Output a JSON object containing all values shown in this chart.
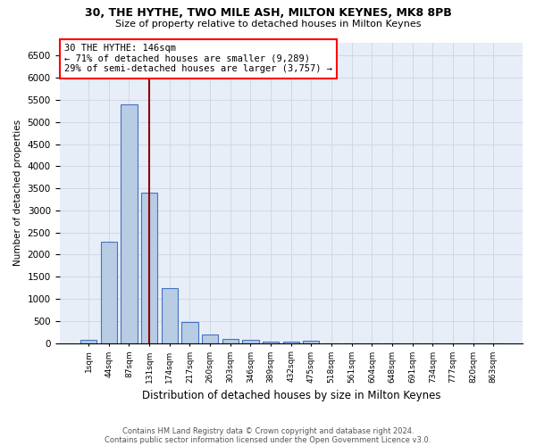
{
  "title1": "30, THE HYTHE, TWO MILE ASH, MILTON KEYNES, MK8 8PB",
  "title2": "Size of property relative to detached houses in Milton Keynes",
  "xlabel": "Distribution of detached houses by size in Milton Keynes",
  "ylabel": "Number of detached properties",
  "footnote1": "Contains HM Land Registry data © Crown copyright and database right 2024.",
  "footnote2": "Contains public sector information licensed under the Open Government Licence v3.0.",
  "bin_labels": [
    "1sqm",
    "44sqm",
    "87sqm",
    "131sqm",
    "174sqm",
    "217sqm",
    "260sqm",
    "303sqm",
    "346sqm",
    "389sqm",
    "432sqm",
    "475sqm",
    "518sqm",
    "561sqm",
    "604sqm",
    "648sqm",
    "691sqm",
    "734sqm",
    "777sqm",
    "820sqm",
    "863sqm"
  ],
  "bar_values": [
    75,
    2300,
    5400,
    3400,
    1250,
    475,
    190,
    100,
    75,
    40,
    30,
    55,
    0,
    0,
    0,
    0,
    0,
    0,
    0,
    0,
    0
  ],
  "bar_color": "#b8cce4",
  "bar_edgecolor": "#4472c4",
  "bar_linewidth": 0.8,
  "grid_color": "#d0d8e8",
  "background_color": "#e8eef8",
  "vline_x_index": 3,
  "vline_color": "#8b0000",
  "annotation_text": "30 THE HYTHE: 146sqm\n← 71% of detached houses are smaller (9,289)\n29% of semi-detached houses are larger (3,757) →",
  "ylim": [
    0,
    6800
  ],
  "yticks": [
    0,
    500,
    1000,
    1500,
    2000,
    2500,
    3000,
    3500,
    4000,
    4500,
    5000,
    5500,
    6000,
    6500
  ]
}
